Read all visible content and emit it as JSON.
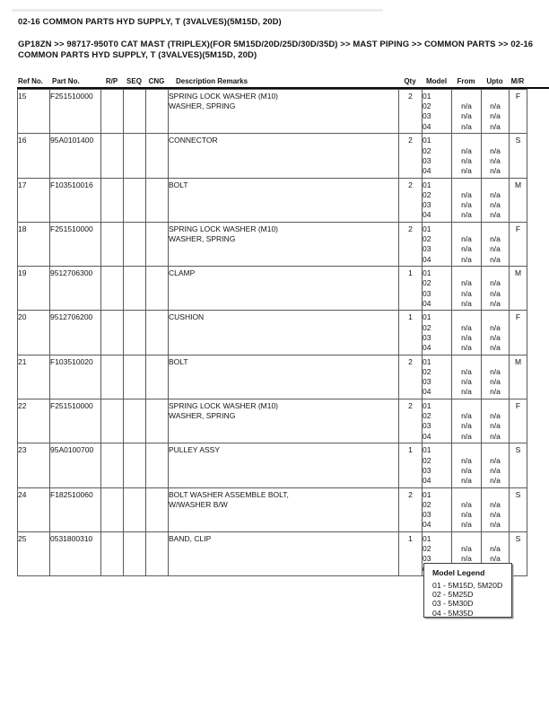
{
  "document": {
    "title": "02-16 COMMON PARTS HYD SUPPLY, T (3VALVES)(5M15D, 20D)",
    "breadcrumb_lines": [
      "GP18ZN >> 98717-950T0 CAT MAST  (TRIPLEX)(FOR 5M15D/20D/25D/30D/35D) >> MAST PIPING >> COMMON PARTS >> 02-16",
      "COMMON PARTS HYD SUPPLY, T (3VALVES)(5M15D, 20D)"
    ]
  },
  "table": {
    "columns": [
      "Ref No.",
      "Part No.",
      "R/P",
      "SEQ",
      "CNG",
      "Description Remarks",
      "Qty",
      "Model",
      "From",
      "Upto",
      "M/R"
    ],
    "na_label": "n/a",
    "rows": [
      {
        "ref": "15",
        "part": "F251510000",
        "rp": "",
        "seq": "",
        "cng": "",
        "desc": [
          "SPRING LOCK WASHER (M10)",
          "WASHER, SPRING"
        ],
        "qty": "2",
        "models": [
          "01",
          "02",
          "03",
          "04"
        ],
        "from": [
          "",
          "n/a",
          "n/a",
          "n/a"
        ],
        "upto": [
          "",
          "n/a",
          "n/a",
          "n/a"
        ],
        "mr": "F"
      },
      {
        "ref": "16",
        "part": "95A0101400",
        "rp": "",
        "seq": "",
        "cng": "",
        "desc": [
          "CONNECTOR"
        ],
        "qty": "2",
        "models": [
          "01",
          "02",
          "03",
          "04"
        ],
        "from": [
          "",
          "n/a",
          "n/a",
          "n/a"
        ],
        "upto": [
          "",
          "n/a",
          "n/a",
          "n/a"
        ],
        "mr": "S"
      },
      {
        "ref": "17",
        "part": "F103510016",
        "rp": "",
        "seq": "",
        "cng": "",
        "desc": [
          "BOLT"
        ],
        "qty": "2",
        "models": [
          "01",
          "02",
          "03",
          "04"
        ],
        "from": [
          "",
          "n/a",
          "n/a",
          "n/a"
        ],
        "upto": [
          "",
          "n/a",
          "n/a",
          "n/a"
        ],
        "mr": "M"
      },
      {
        "ref": "18",
        "part": "F251510000",
        "rp": "",
        "seq": "",
        "cng": "",
        "desc": [
          "SPRING LOCK WASHER (M10)",
          "WASHER, SPRING"
        ],
        "qty": "2",
        "models": [
          "01",
          "02",
          "03",
          "04"
        ],
        "from": [
          "",
          "n/a",
          "n/a",
          "n/a"
        ],
        "upto": [
          "",
          "n/a",
          "n/a",
          "n/a"
        ],
        "mr": "F"
      },
      {
        "ref": "19",
        "part": "9512706300",
        "rp": "",
        "seq": "",
        "cng": "",
        "desc": [
          "CLAMP"
        ],
        "qty": "1",
        "models": [
          "01",
          "02",
          "03",
          "04"
        ],
        "from": [
          "",
          "n/a",
          "n/a",
          "n/a"
        ],
        "upto": [
          "",
          "n/a",
          "n/a",
          "n/a"
        ],
        "mr": "M"
      },
      {
        "ref": "20",
        "part": "9512706200",
        "rp": "",
        "seq": "",
        "cng": "",
        "desc": [
          "CUSHION"
        ],
        "qty": "1",
        "models": [
          "01",
          "02",
          "03",
          "04"
        ],
        "from": [
          "",
          "n/a",
          "n/a",
          "n/a"
        ],
        "upto": [
          "",
          "n/a",
          "n/a",
          "n/a"
        ],
        "mr": "F"
      },
      {
        "ref": "21",
        "part": "F103510020",
        "rp": "",
        "seq": "",
        "cng": "",
        "desc": [
          "BOLT"
        ],
        "qty": "2",
        "models": [
          "01",
          "02",
          "03",
          "04"
        ],
        "from": [
          "",
          "n/a",
          "n/a",
          "n/a"
        ],
        "upto": [
          "",
          "n/a",
          "n/a",
          "n/a"
        ],
        "mr": "M"
      },
      {
        "ref": "22",
        "part": "F251510000",
        "rp": "",
        "seq": "",
        "cng": "",
        "desc": [
          "SPRING LOCK WASHER (M10)",
          "WASHER, SPRING"
        ],
        "qty": "2",
        "models": [
          "01",
          "02",
          "03",
          "04"
        ],
        "from": [
          "",
          "n/a",
          "n/a",
          "n/a"
        ],
        "upto": [
          "",
          "n/a",
          "n/a",
          "n/a"
        ],
        "mr": "F"
      },
      {
        "ref": "23",
        "part": "95A0100700",
        "rp": "",
        "seq": "",
        "cng": "",
        "desc": [
          "PULLEY ASSY"
        ],
        "qty": "1",
        "models": [
          "01",
          "02",
          "03",
          "04"
        ],
        "from": [
          "",
          "n/a",
          "n/a",
          "n/a"
        ],
        "upto": [
          "",
          "n/a",
          "n/a",
          "n/a"
        ],
        "mr": "S"
      },
      {
        "ref": "24",
        "part": "F182510060",
        "rp": "",
        "seq": "",
        "cng": "",
        "desc": [
          "BOLT WASHER ASSEMBLE BOLT,",
          "W/WASHER B/W"
        ],
        "qty": "2",
        "models": [
          "01",
          "02",
          "03",
          "04"
        ],
        "from": [
          "",
          "n/a",
          "n/a",
          "n/a"
        ],
        "upto": [
          "",
          "n/a",
          "n/a",
          "n/a"
        ],
        "mr": "S"
      },
      {
        "ref": "25",
        "part": "0531800310",
        "rp": "",
        "seq": "",
        "cng": "",
        "desc": [
          "BAND, CLIP"
        ],
        "qty": "1",
        "models": [
          "01",
          "02",
          "03",
          "04"
        ],
        "from": [
          "",
          "n/a",
          "n/a",
          "n/a"
        ],
        "upto": [
          "",
          "n/a",
          "n/a",
          "n/a"
        ],
        "mr": "S"
      }
    ]
  },
  "model_legend": {
    "title": "Model Legend",
    "items": [
      "01 - 5M15D, 5M20D",
      "02 - 5M25D",
      "03 - 5M30D",
      "04 - 5M35D"
    ]
  }
}
